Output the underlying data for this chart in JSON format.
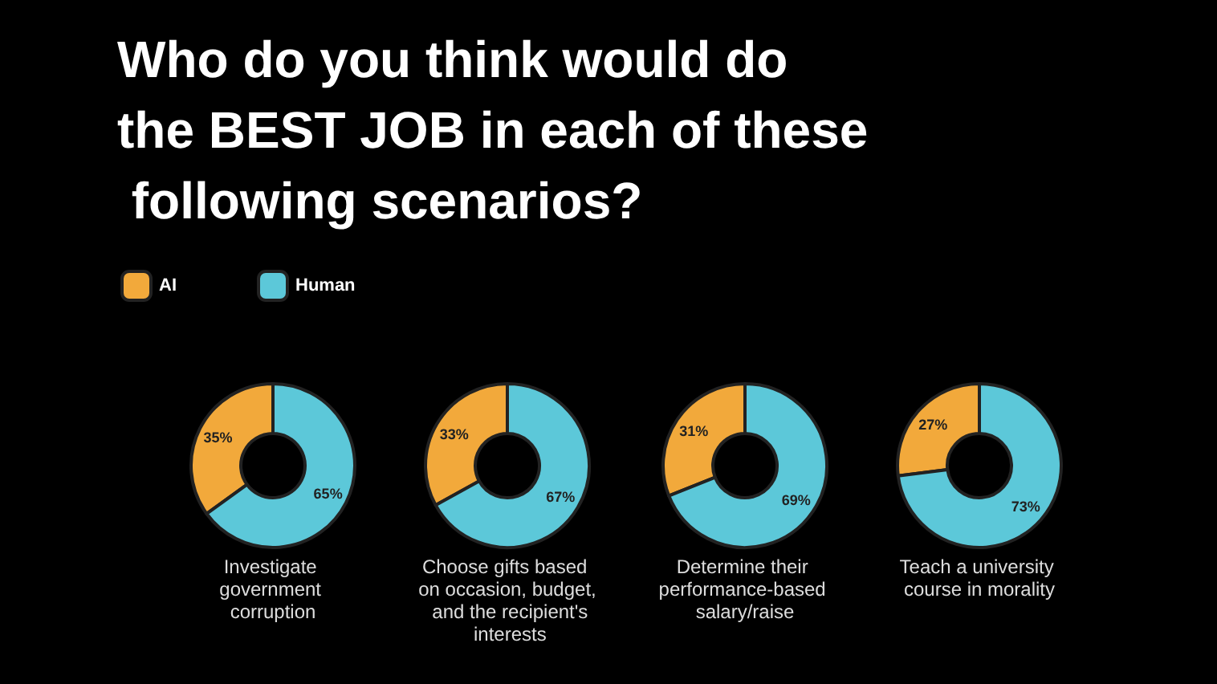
{
  "chart_data": [
    {
      "type": "donut",
      "title": "Who do you think would do the BEST JOB in each of these following scenarios?",
      "categories": [
        "AI",
        "Human"
      ],
      "values": [
        35,
        65
      ],
      "value_labels": [
        "35%",
        "65%"
      ],
      "colors": [
        "#f2a93b",
        "#5cc8d9"
      ],
      "legend": "top left",
      "annotations": [
        "Investigate government corruption"
      ]
    },
    {
      "type": "donut",
      "categories": [
        null,
        null
      ],
      "values": [
        33,
        67
      ],
      "value_labels": [
        "33%",
        "67%"
      ],
      "colors": [
        "#f2a93b",
        "#5cc8d9"
      ],
      "annotations": [
        "Choose gifts based on occasion, budget, and the recipient's interests"
      ]
    },
    {
      "type": "donut",
      "categories": [
        null,
        null
      ],
      "values": [
        31,
        69
      ],
      "value_labels": [
        "31%",
        "69%"
      ],
      "colors": [
        "#f2a93b",
        "#5cc8d9"
      ],
      "annotations": [
        "Determine their performance-based salary/raise"
      ]
    },
    {
      "type": "donut",
      "categories": [
        null,
        null
      ],
      "values": [
        27,
        73
      ],
      "value_labels": [
        "27%",
        "73%"
      ],
      "colors": [
        "#f2a93b",
        "#5cc8d9"
      ],
      "annotations": [
        "Teach a university course in morality"
      ]
    }
  ]
}
